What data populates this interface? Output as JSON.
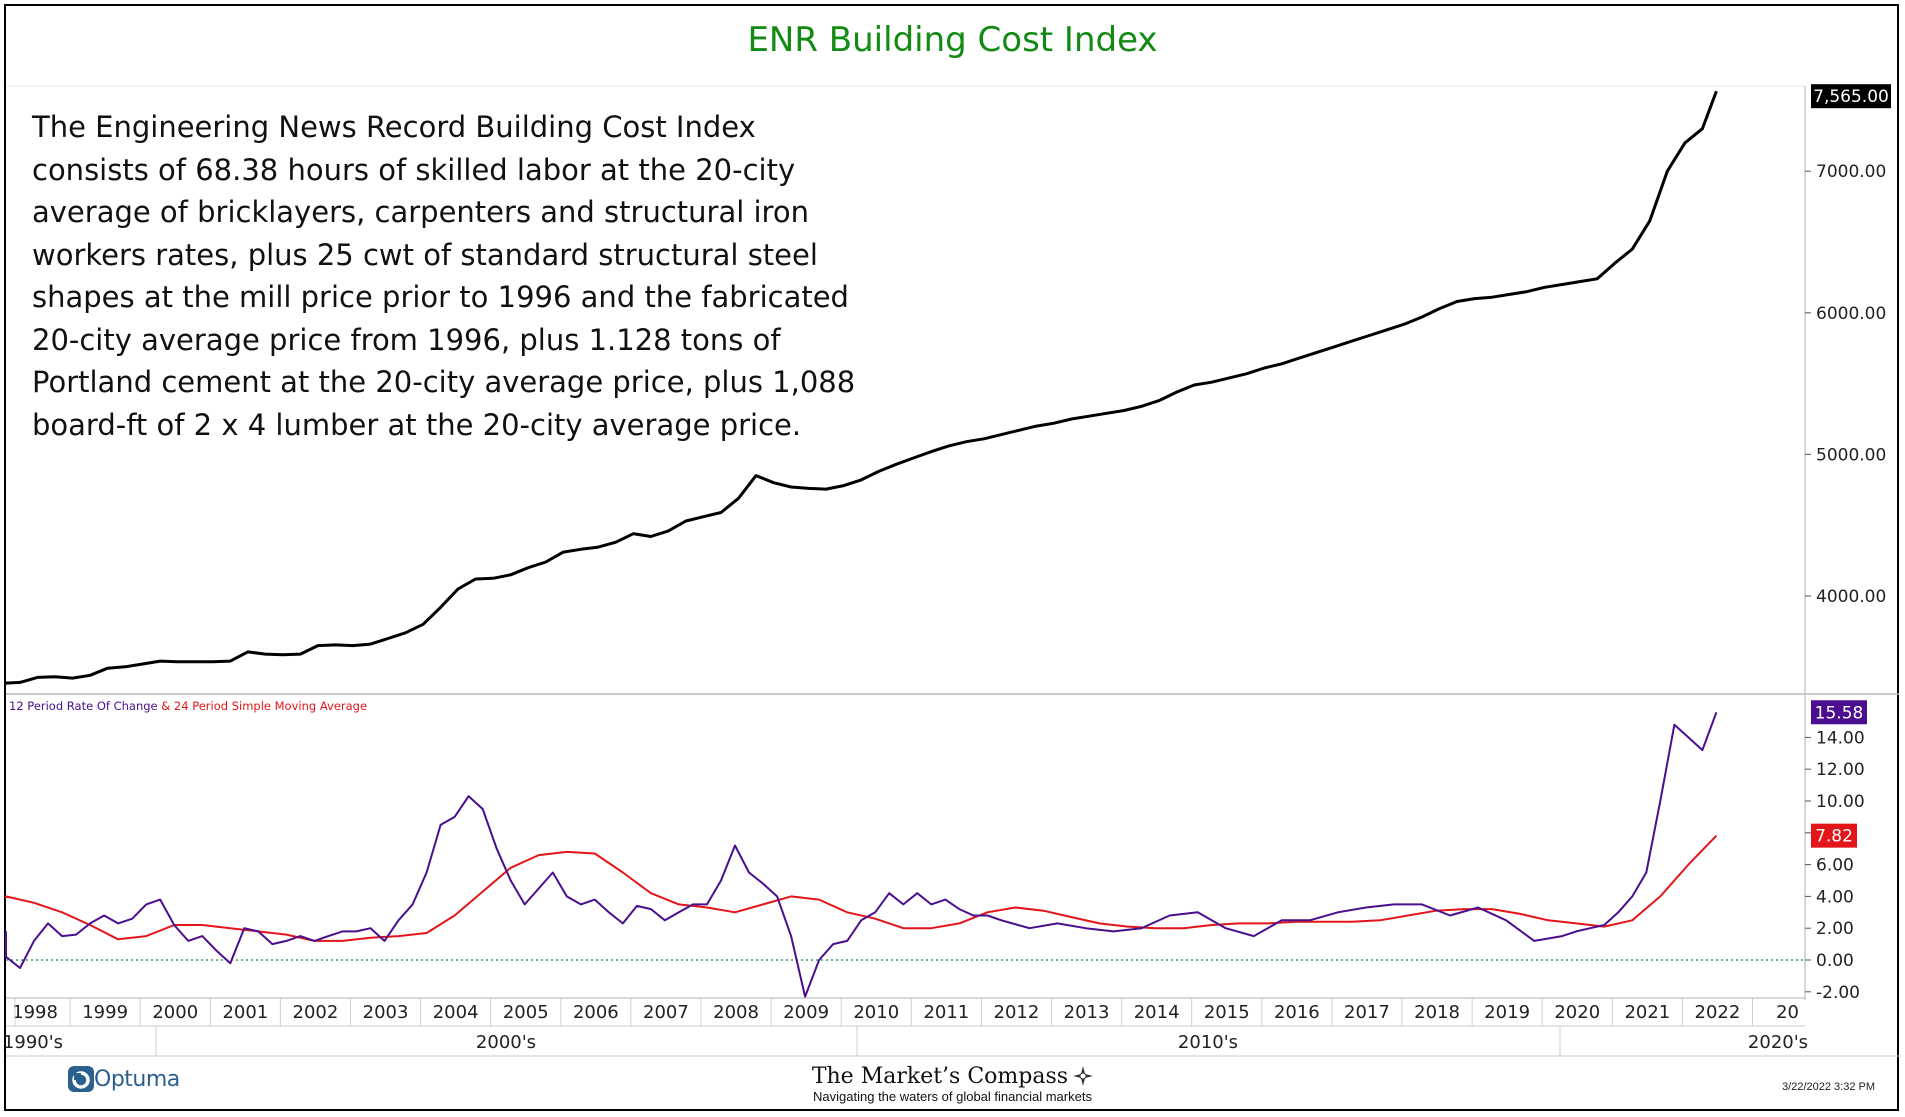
{
  "title": "ENR Building Cost Index",
  "description_lines": [
    "The Engineering News Record Building Cost Index",
    "consists of 68.38 hours of skilled labor at the 20-city",
    "average of bricklayers, carpenters and structural iron",
    "workers rates, plus 25 cwt of standard structural steel",
    "shapes at the mill price prior to 1996 and the fabricated",
    "20-city average price from 1996, plus 1.128 tons of",
    "Portland cement at the 20-city average price, plus 1,088",
    "board-ft of 2 x 4 lumber at the 20-city average price."
  ],
  "colors": {
    "title": "#138a13",
    "index_line": "#000000",
    "roc_line": "#4b0e8e",
    "sma_line": "#e3151a",
    "zero_line": "#1a8a3a",
    "roc_badge": "#4b0e8e",
    "sma_badge": "#e3151a",
    "index_badge": "#000000"
  },
  "chart_data": [
    {
      "type": "line",
      "title": "ENR Building Cost Index",
      "ylim": [
        3300,
        7620
      ],
      "xlim": [
        1997.4,
        2022.8
      ],
      "y_ticks": [
        "4000.00",
        "5000.00",
        "6000.00",
        "7000.00"
      ],
      "last_value_label": "7,565.00",
      "series": [
        {
          "x": [
            1997.4,
            1997.75,
            1998.0,
            1998.25,
            1998.5,
            1998.75,
            1999.0,
            1999.25,
            1999.5,
            1999.75,
            2000.0,
            2000.25,
            2000.5,
            2000.75,
            2001.0,
            2001.25,
            2001.5,
            2001.75,
            2002.0,
            2002.25,
            2002.5,
            2002.75,
            2003.0,
            2003.25,
            2003.5,
            2003.75,
            2004.0,
            2004.25,
            2004.5,
            2004.75,
            2005.0,
            2005.25,
            2005.5,
            2005.75,
            2006.0,
            2006.25,
            2006.5,
            2006.75,
            2007.0,
            2007.25,
            2007.5,
            2007.75,
            2008.0,
            2008.25,
            2008.5,
            2008.75,
            2009.0,
            2009.25,
            2009.5,
            2009.75,
            2010.0,
            2010.25,
            2010.5,
            2010.75,
            2011.0,
            2011.25,
            2011.5,
            2011.75,
            2012.0,
            2012.25,
            2012.5,
            2012.75,
            2013.0,
            2013.25,
            2013.5,
            2013.75,
            2014.0,
            2014.25,
            2014.5,
            2014.75,
            2015.0,
            2015.25,
            2015.5,
            2015.75,
            2016.0,
            2016.25,
            2016.5,
            2016.75,
            2017.0,
            2017.25,
            2017.5,
            2017.75,
            2018.0,
            2018.25,
            2018.5,
            2018.75,
            2019.0,
            2019.25,
            2019.5,
            2019.75,
            2020.0,
            2020.25,
            2020.5,
            2020.75,
            2021.0,
            2021.25,
            2021.5,
            2021.75,
            2022.0,
            2022.2
          ],
          "y": [
            3375,
            3385,
            3390,
            3425,
            3430,
            3420,
            3440,
            3490,
            3500,
            3520,
            3540,
            3535,
            3535,
            3535,
            3540,
            3605,
            3590,
            3585,
            3590,
            3650,
            3655,
            3650,
            3660,
            3700,
            3740,
            3800,
            3920,
            4050,
            4120,
            4125,
            4150,
            4200,
            4240,
            4310,
            4330,
            4345,
            4380,
            4440,
            4420,
            4460,
            4530,
            4560,
            4590,
            4690,
            4850,
            4800,
            4770,
            4760,
            4755,
            4780,
            4820,
            4880,
            4930,
            4975,
            5020,
            5060,
            5090,
            5110,
            5140,
            5170,
            5200,
            5220,
            5250,
            5270,
            5290,
            5310,
            5340,
            5380,
            5440,
            5490,
            5510,
            5540,
            5570,
            5610,
            5640,
            5680,
            5720,
            5760,
            5800,
            5840,
            5880,
            5920,
            5970,
            6030,
            6080,
            6100,
            6110,
            6130,
            6150,
            6180,
            6200,
            6220,
            6240,
            6350,
            6450,
            6650,
            7000,
            7200,
            7300,
            7565
          ]
        }
      ]
    },
    {
      "type": "line",
      "title": "12 Period Rate Of Change & 24 Period Simple Moving Average",
      "ylim": [
        -2.0,
        16.0
      ],
      "xlim": [
        1997.4,
        2022.8
      ],
      "y_ticks": [
        "-2.00",
        "0.00",
        "2.00",
        "4.00",
        "6.00",
        "8.00",
        "10.00",
        "12.00",
        "14.00"
      ],
      "legend": [
        "12 Period Rate Of Change",
        "24 Period Simple Moving Average"
      ],
      "series": [
        {
          "name": "12 Period Rate Of Change",
          "last_value_label": "15.58",
          "x": [
            1997.4,
            1997.6,
            1997.8,
            1998.0,
            1998.2,
            1998.4,
            1998.6,
            1998.8,
            1999.0,
            1999.2,
            1999.4,
            1999.6,
            1999.8,
            2000.0,
            2000.2,
            2000.4,
            2000.6,
            2000.8,
            2001.0,
            2001.2,
            2001.4,
            2001.6,
            2001.8,
            2002.0,
            2002.2,
            2002.4,
            2002.6,
            2002.8,
            2003.0,
            2003.2,
            2003.4,
            2003.6,
            2003.8,
            2004.0,
            2004.2,
            2004.4,
            2004.6,
            2004.8,
            2005.0,
            2005.2,
            2005.4,
            2005.6,
            2005.8,
            2006.0,
            2006.2,
            2006.4,
            2006.6,
            2006.8,
            2007.0,
            2007.2,
            2007.4,
            2007.6,
            2007.8,
            2008.0,
            2008.2,
            2008.4,
            2008.6,
            2008.8,
            2009.0,
            2009.2,
            2009.4,
            2009.6,
            2009.8,
            2010.0,
            2010.2,
            2010.4,
            2010.6,
            2010.8,
            2011.0,
            2011.2,
            2011.4,
            2011.6,
            2011.8,
            2012.0,
            2012.4,
            2012.8,
            2013.2,
            2013.6,
            2014.0,
            2014.4,
            2014.8,
            2015.2,
            2015.6,
            2016.0,
            2016.4,
            2016.8,
            2017.2,
            2017.6,
            2018.0,
            2018.4,
            2018.8,
            2019.2,
            2019.6,
            2020.0,
            2020.2,
            2020.4,
            2020.6,
            2020.8,
            2021.0,
            2021.2,
            2021.4,
            2021.6,
            2021.8,
            2022.0,
            2022.2
          ],
          "y": [
            1.8,
            1.0,
            0.2,
            -0.5,
            1.2,
            2.3,
            1.5,
            1.6,
            2.3,
            2.8,
            2.3,
            2.6,
            3.5,
            3.8,
            2.2,
            1.2,
            1.5,
            0.6,
            -0.2,
            2.0,
            1.8,
            1.0,
            1.2,
            1.5,
            1.2,
            1.5,
            1.8,
            1.8,
            2.0,
            1.2,
            2.5,
            3.5,
            5.5,
            8.5,
            9.0,
            10.3,
            9.5,
            7.0,
            5.0,
            3.5,
            4.5,
            5.5,
            4.0,
            3.5,
            3.8,
            3.0,
            2.3,
            3.4,
            3.2,
            2.5,
            3.0,
            3.5,
            3.5,
            5.0,
            7.2,
            5.5,
            4.8,
            4.0,
            1.5,
            -2.3,
            0.0,
            1.0,
            1.2,
            2.5,
            3.0,
            4.2,
            3.5,
            4.2,
            3.5,
            3.8,
            3.2,
            2.8,
            2.8,
            2.5,
            2.0,
            2.3,
            2.0,
            1.8,
            2.0,
            2.8,
            3.0,
            2.0,
            1.5,
            2.5,
            2.5,
            3.0,
            3.3,
            3.5,
            3.5,
            2.8,
            3.3,
            2.5,
            1.2,
            1.5,
            1.8,
            2.0,
            2.2,
            3.0,
            4.0,
            5.5,
            10.0,
            14.8,
            14.0,
            13.2,
            15.58
          ]
        },
        {
          "name": "24 Period Simple Moving Average",
          "last_value_label": "7.82",
          "x": [
            1997.4,
            1997.8,
            1998.2,
            1998.6,
            1999.0,
            1999.4,
            1999.8,
            2000.2,
            2000.6,
            2001.0,
            2001.4,
            2001.8,
            2002.2,
            2002.6,
            2003.0,
            2003.4,
            2003.8,
            2004.2,
            2004.6,
            2005.0,
            2005.4,
            2005.8,
            2006.2,
            2006.6,
            2007.0,
            2007.4,
            2007.8,
            2008.2,
            2008.6,
            2009.0,
            2009.4,
            2009.8,
            2010.2,
            2010.6,
            2011.0,
            2011.4,
            2011.8,
            2012.2,
            2012.6,
            2013.0,
            2013.4,
            2013.8,
            2014.2,
            2014.6,
            2015.0,
            2015.4,
            2015.8,
            2016.2,
            2016.6,
            2017.0,
            2017.4,
            2017.8,
            2018.2,
            2018.6,
            2019.0,
            2019.4,
            2019.8,
            2020.2,
            2020.6,
            2021.0,
            2021.4,
            2021.8,
            2022.2
          ],
          "y": [
            3.9,
            4.0,
            3.6,
            3.0,
            2.2,
            1.3,
            1.5,
            2.2,
            2.2,
            2.0,
            1.8,
            1.6,
            1.2,
            1.2,
            1.4,
            1.5,
            1.7,
            2.8,
            4.3,
            5.8,
            6.6,
            6.8,
            6.7,
            5.5,
            4.2,
            3.5,
            3.3,
            3.0,
            3.5,
            4.0,
            3.8,
            3.0,
            2.6,
            2.0,
            2.0,
            2.3,
            3.0,
            3.3,
            3.1,
            2.7,
            2.3,
            2.1,
            2.0,
            2.0,
            2.2,
            2.3,
            2.3,
            2.4,
            2.4,
            2.4,
            2.5,
            2.8,
            3.1,
            3.2,
            3.2,
            2.9,
            2.5,
            2.3,
            2.1,
            2.5,
            4.0,
            6.0,
            7.82
          ]
        }
      ]
    }
  ],
  "x_axis": {
    "years": [
      "1998",
      "1999",
      "2000",
      "2001",
      "2002",
      "2003",
      "2004",
      "2005",
      "2006",
      "2007",
      "2008",
      "2009",
      "2010",
      "2011",
      "2012",
      "2013",
      "2014",
      "2015",
      "2016",
      "2017",
      "2018",
      "2019",
      "2020",
      "2021",
      "2022",
      "20"
    ],
    "decades": [
      "1990's",
      "2000's",
      "2010's",
      "2020's"
    ]
  },
  "footer": {
    "logo": "Optuma",
    "brand": "The Market’s Compass",
    "tagline": "Navigating the waters of global financial markets",
    "timestamp": "3/22/2022 3:32 PM"
  }
}
